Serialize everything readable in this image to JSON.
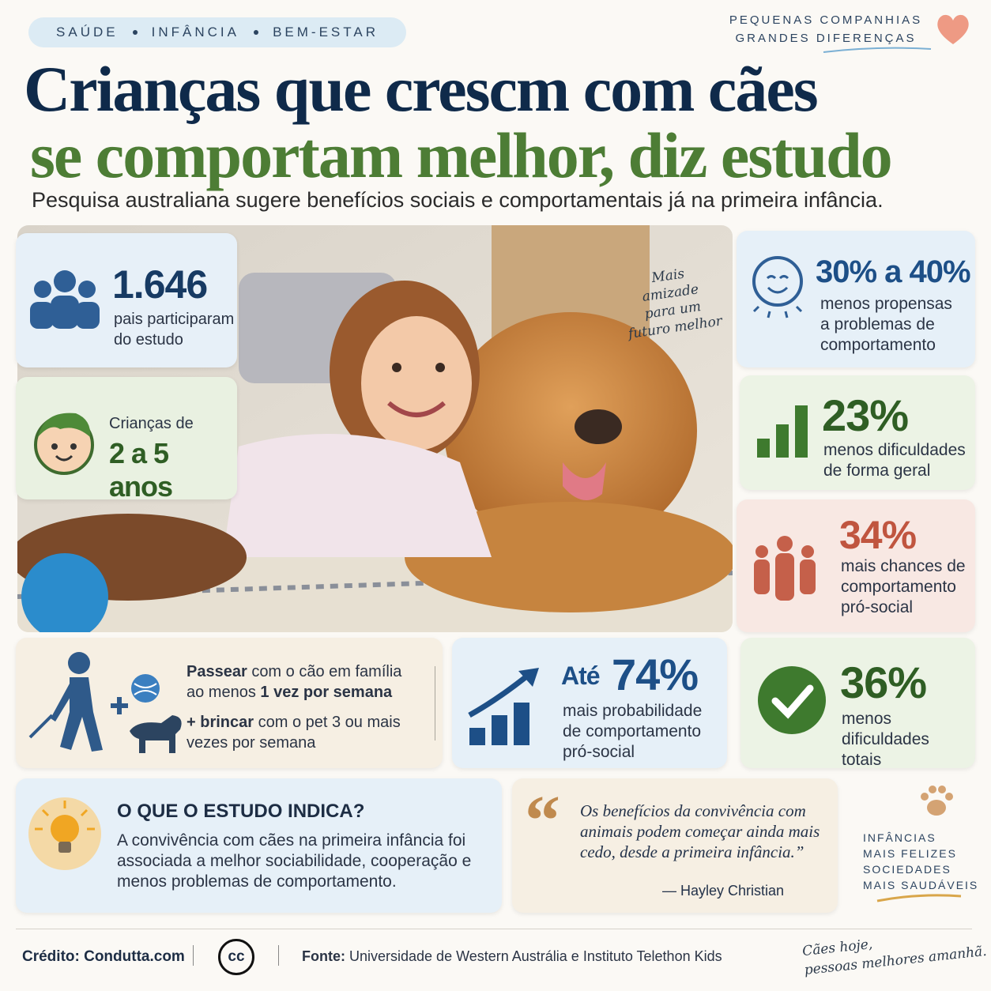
{
  "header": {
    "tags": [
      "SAÚDE",
      "INFÂNCIA",
      "BEM-ESTAR"
    ],
    "tagline": [
      "PEQUENAS COMPANHIAS",
      "GRANDES DIFERENÇAS"
    ],
    "title": [
      "Crianças que crescm com cães",
      "se comportam melhor, diz estudo"
    ],
    "subtitle": "Pesquisa australiana sugere benefícios sociais e comportamentais já na primeira infância."
  },
  "photo": {
    "note": [
      "Mais",
      "amizade",
      "para um",
      "futuro melhor"
    ]
  },
  "participants": {
    "value": "1.646",
    "label": [
      "pais participaram",
      "do estudo"
    ]
  },
  "ages": {
    "label": "Crianças de",
    "value": "2 a 5 anos"
  },
  "stats": [
    {
      "value": "30% a 40%",
      "label": [
        "menos propensas",
        "a problemas de",
        "comportamento"
      ]
    },
    {
      "value": "23%",
      "label": [
        "menos dificuldades",
        "de forma geral"
      ]
    },
    {
      "value": "34%",
      "label": [
        "mais chances de",
        "comportamento",
        "pró-social"
      ]
    },
    {
      "prefix": "Até",
      "value": "74%",
      "label": [
        "mais probabilidade",
        "de comportamento",
        "pró-social"
      ]
    },
    {
      "value": "36%",
      "label": [
        "menos dificuldades",
        "totais"
      ]
    }
  ],
  "activity": {
    "walk": [
      "Passear",
      "com o cão em família ao menos",
      "1 vez por semana"
    ],
    "play": [
      "+ brincar",
      "com o pet 3 ou mais vezes por semana"
    ]
  },
  "findings": {
    "title": "O QUE O ESTUDO INDICA?",
    "text": "A convivência com cães na primeira infância foi associada a melhor sociabilidade, cooperação e menos problemas de comportamento."
  },
  "quote": {
    "mark": "“",
    "text": "Os benefícios da convivência com animais podem começar ainda mais cedo, desde a primeira infância.”",
    "author": "— Hayley Christian"
  },
  "motto": [
    "INFÂNCIAS",
    "MAIS FELIZES",
    "SOCIEDADES",
    "MAIS SAUDÁVEIS"
  ],
  "footer": {
    "credit_label": "Crédito:",
    "credit": "Condutta.com",
    "license": "cc",
    "source_label": "Fonte:",
    "source": "Universidade de Western Austrália e Instituto Telethon Kids",
    "slogan": [
      "Cães hoje,",
      "pessoas melhores amanhã."
    ]
  }
}
